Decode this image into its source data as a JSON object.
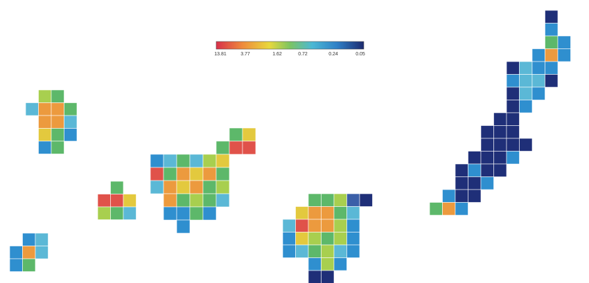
{
  "legend": {
    "ticks": [
      "13.81",
      "3.77",
      "1.62",
      "0.72",
      "0.24",
      "0.05"
    ]
  }
}
